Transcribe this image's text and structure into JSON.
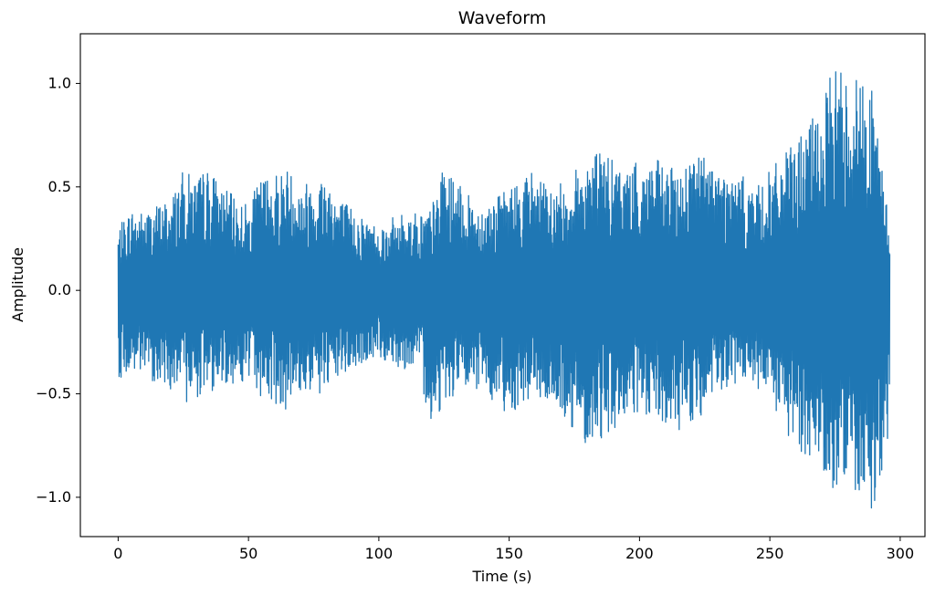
{
  "chart_data": {
    "type": "line",
    "title": "Waveform",
    "xlabel": "Time (s)",
    "ylabel": "Amplitude",
    "xlim": [
      -14.5,
      309.5
    ],
    "ylim": [
      -1.19,
      1.24
    ],
    "xticks": [
      0,
      50,
      100,
      150,
      200,
      250,
      300
    ],
    "xtick_labels": [
      "0",
      "50",
      "100",
      "150",
      "200",
      "250",
      "300"
    ],
    "yticks": [
      -1.0,
      -0.5,
      0.0,
      0.5,
      1.0
    ],
    "ytick_labels": [
      "−1.0",
      "−0.5",
      "0.0",
      "0.5",
      "1.0"
    ],
    "grid": false,
    "line_color": "#1f77b4",
    "series": [
      {
        "x": [
          0,
          5,
          10,
          15,
          20,
          25,
          30,
          35,
          40,
          45,
          50,
          55,
          60,
          65,
          70,
          75,
          80,
          85,
          90,
          95,
          100,
          105,
          110,
          115,
          120,
          125,
          130,
          135,
          140,
          145,
          150,
          155,
          160,
          165,
          170,
          175,
          180,
          185,
          190,
          195,
          200,
          205,
          210,
          215,
          220,
          225,
          230,
          235,
          240,
          245,
          250,
          255,
          260,
          265,
          270,
          275,
          280,
          285,
          290,
          295
        ],
        "upper": [
          0.3,
          0.4,
          0.38,
          0.42,
          0.45,
          0.58,
          0.55,
          0.6,
          0.5,
          0.45,
          0.42,
          0.55,
          0.58,
          0.6,
          0.52,
          0.55,
          0.58,
          0.45,
          0.4,
          0.35,
          0.32,
          0.35,
          0.38,
          0.38,
          0.4,
          0.6,
          0.52,
          0.45,
          0.42,
          0.45,
          0.5,
          0.55,
          0.6,
          0.48,
          0.52,
          0.58,
          0.65,
          0.7,
          0.62,
          0.6,
          0.62,
          0.65,
          0.6,
          0.58,
          0.68,
          0.66,
          0.62,
          0.55,
          0.55,
          0.5,
          0.58,
          0.65,
          0.72,
          0.82,
          0.88,
          1.12,
          1.05,
          1.05,
          0.95,
          0.4
        ],
        "lower": [
          -0.42,
          -0.42,
          -0.42,
          -0.45,
          -0.48,
          -0.55,
          -0.52,
          -0.5,
          -0.45,
          -0.45,
          -0.45,
          -0.52,
          -0.55,
          -0.58,
          -0.5,
          -0.5,
          -0.52,
          -0.42,
          -0.4,
          -0.35,
          -0.33,
          -0.36,
          -0.38,
          -0.38,
          -0.65,
          -0.55,
          -0.5,
          -0.5,
          -0.48,
          -0.55,
          -0.6,
          -0.55,
          -0.52,
          -0.55,
          -0.62,
          -0.68,
          -0.75,
          -0.72,
          -0.68,
          -0.62,
          -0.62,
          -0.65,
          -0.68,
          -0.68,
          -0.65,
          -0.6,
          -0.52,
          -0.48,
          -0.45,
          -0.5,
          -0.55,
          -0.68,
          -0.78,
          -0.8,
          -0.85,
          -0.98,
          -0.92,
          -1.08,
          -1.05,
          -0.75
        ],
        "end_x": 296
      }
    ]
  }
}
